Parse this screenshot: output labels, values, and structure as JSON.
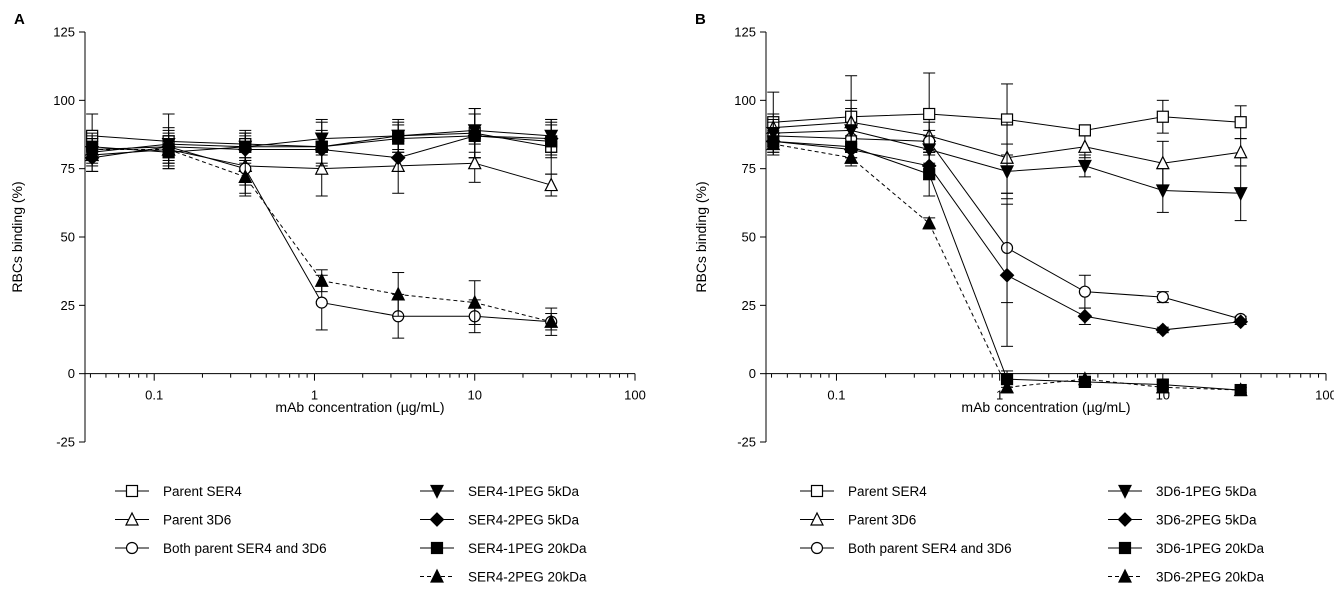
{
  "chart_data": [
    {
      "type": "line",
      "panel_label": "A",
      "xlabel": "mAb concentration (µg/mL)",
      "ylabel": "RBCs binding (%)",
      "x_scale": "log",
      "xlim": [
        0.037,
        100
      ],
      "ylim": [
        -25,
        125
      ],
      "x_ticks": [
        "0.1",
        "1",
        "10",
        "100"
      ],
      "y_ticks": [
        "-25",
        "0",
        "25",
        "50",
        "75",
        "100",
        "125"
      ],
      "grid": false,
      "legend_position": "bottom",
      "series": [
        {
          "name": "Parent SER4",
          "marker": "square-open",
          "dash": "solid",
          "x": [
            0.041,
            0.123,
            0.37,
            1.11,
            3.33,
            10,
            30
          ],
          "y": [
            87,
            85,
            84,
            83,
            87,
            88,
            83
          ],
          "err": [
            8,
            10,
            5,
            10,
            6,
            9,
            10
          ]
        },
        {
          "name": "Parent 3D6",
          "marker": "triangle-up-open",
          "dash": "solid",
          "x": [
            0.041,
            0.123,
            0.37,
            1.11,
            3.33,
            10,
            30
          ],
          "y": [
            80,
            82,
            76,
            75,
            76,
            77,
            69
          ],
          "err": [
            6,
            6,
            10,
            10,
            10,
            7,
            4
          ]
        },
        {
          "name": "Both parent SER4 and 3D6",
          "marker": "circle-open",
          "dash": "solid",
          "x": [
            0.041,
            0.123,
            0.37,
            1.11,
            3.33,
            10,
            30
          ],
          "y": [
            82,
            83,
            75,
            26,
            21,
            21,
            19
          ],
          "err": [
            4,
            4,
            6,
            10,
            8,
            6,
            3
          ]
        },
        {
          "name": "SER4-1PEG 5kDa",
          "marker": "triangle-down-filled",
          "dash": "solid",
          "x": [
            0.041,
            0.123,
            0.37,
            1.11,
            3.33,
            10,
            30
          ],
          "y": [
            81,
            84,
            83,
            86,
            87,
            89,
            87
          ],
          "err": [
            5,
            6,
            5,
            6,
            5,
            8,
            6
          ]
        },
        {
          "name": "SER4-2PEG 5kDa",
          "marker": "diamond-filled",
          "dash": "solid",
          "x": [
            0.041,
            0.123,
            0.37,
            1.11,
            3.33,
            10,
            30
          ],
          "y": [
            79,
            83,
            82,
            82,
            79,
            87,
            86
          ],
          "err": [
            5,
            6,
            5,
            6,
            5,
            8,
            6
          ]
        },
        {
          "name": "SER4-1PEG 20kDa",
          "marker": "square-filled",
          "dash": "solid",
          "x": [
            0.041,
            0.123,
            0.37,
            1.11,
            3.33,
            10,
            30
          ],
          "y": [
            83,
            81,
            83,
            83,
            86,
            87,
            85
          ],
          "err": [
            5,
            6,
            5,
            6,
            5,
            8,
            6
          ]
        },
        {
          "name": "SER4-2PEG 20kDa",
          "marker": "triangle-up-filled",
          "dash": "dashed",
          "x": [
            0.041,
            0.123,
            0.37,
            1.11,
            3.33,
            10,
            30
          ],
          "y": [
            82,
            82,
            72,
            34,
            29,
            26,
            19
          ],
          "err": [
            5,
            5,
            7,
            4,
            8,
            8,
            5
          ]
        }
      ]
    },
    {
      "type": "line",
      "panel_label": "B",
      "xlabel": "mAb concentration (µg/mL)",
      "ylabel": "RBCs binding (%)",
      "x_scale": "log",
      "xlim": [
        0.037,
        100
      ],
      "ylim": [
        -25,
        125
      ],
      "x_ticks": [
        "0.1",
        "1",
        "10",
        "100"
      ],
      "y_ticks": [
        "-25",
        "0",
        "25",
        "50",
        "75",
        "100",
        "125"
      ],
      "grid": false,
      "legend_position": "bottom",
      "series": [
        {
          "name": "Parent SER4",
          "marker": "square-open",
          "dash": "solid",
          "x": [
            0.041,
            0.123,
            0.37,
            1.11,
            3.33,
            10,
            30
          ],
          "y": [
            92,
            94,
            95,
            93,
            89,
            94,
            92
          ],
          "err": [
            11,
            15,
            15,
            13,
            2,
            6,
            6
          ]
        },
        {
          "name": "Parent 3D6",
          "marker": "triangle-up-open",
          "dash": "solid",
          "x": [
            0.041,
            0.123,
            0.37,
            1.11,
            3.33,
            10,
            30
          ],
          "y": [
            90,
            92,
            87,
            79,
            83,
            77,
            81
          ],
          "err": [
            5,
            8,
            5,
            13,
            4,
            8,
            5
          ]
        },
        {
          "name": "Both parent SER4 and 3D6",
          "marker": "circle-open",
          "dash": "solid",
          "x": [
            0.041,
            0.123,
            0.37,
            1.11,
            3.33,
            10,
            30
          ],
          "y": [
            87,
            86,
            85,
            46,
            30,
            28,
            20
          ],
          "err": [
            5,
            5,
            4,
            20,
            6,
            2,
            1
          ]
        },
        {
          "name": "3D6-1PEG 5kDa",
          "marker": "triangle-down-filled",
          "dash": "solid",
          "x": [
            0.041,
            0.123,
            0.37,
            1.11,
            3.33,
            10,
            30
          ],
          "y": [
            88,
            89,
            82,
            74,
            76,
            67,
            66
          ],
          "err": [
            5,
            8,
            5,
            10,
            4,
            8,
            10
          ]
        },
        {
          "name": "3D6-2PEG 5kDa",
          "marker": "diamond-filled",
          "dash": "solid",
          "x": [
            0.041,
            0.123,
            0.37,
            1.11,
            3.33,
            10,
            30
          ],
          "y": [
            85,
            82,
            76,
            36,
            21,
            16,
            19
          ],
          "err": [
            5,
            5,
            5,
            26,
            3,
            1,
            1
          ]
        },
        {
          "name": "3D6-1PEG 20kDa",
          "marker": "square-filled",
          "dash": "solid",
          "x": [
            0.041,
            0.123,
            0.37,
            1.11,
            3.33,
            10,
            30
          ],
          "y": [
            85,
            83,
            73,
            -2,
            -3,
            -4,
            -6
          ],
          "err": [
            4,
            4,
            8,
            3,
            2,
            2,
            1
          ]
        },
        {
          "name": "3D6-2PEG 20kDa",
          "marker": "triangle-up-filled",
          "dash": "dashed",
          "x": [
            0.041,
            0.123,
            0.37,
            1.11,
            3.33,
            10,
            30
          ],
          "y": [
            84,
            79,
            55,
            -5,
            -2,
            -5,
            -6
          ],
          "err": [
            4,
            3,
            2,
            2,
            2,
            2,
            1
          ]
        }
      ]
    }
  ]
}
